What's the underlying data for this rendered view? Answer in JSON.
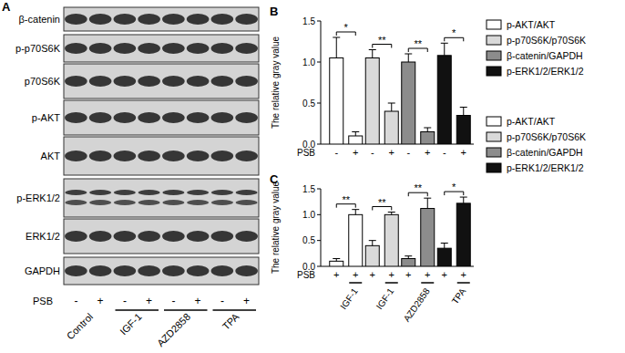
{
  "chart_data": [
    {
      "type": "blot",
      "title": "A",
      "rows": [
        "β-catenin",
        "p-p70S6K",
        "p70S6K",
        "p-AKT",
        "AKT",
        "p-ERK1/2",
        "ERK1/2",
        "GAPDH"
      ],
      "lane_label": "PSB",
      "lanes": [
        "-",
        "+",
        "-",
        "+",
        "-",
        "+",
        "-",
        "+"
      ],
      "groups": [
        "Control",
        "IGF-1",
        "AZD2858",
        "TPA"
      ]
    },
    {
      "type": "bar",
      "title": "B",
      "y_label": "The relative gray value",
      "x_label": "PSB",
      "categories": [
        "-",
        "+"
      ],
      "ylim": [
        0,
        1.5
      ],
      "yticks": [
        {
          "value": 0,
          "label": "0.0"
        },
        {
          "value": 0.5,
          "label": "0.5"
        },
        {
          "value": 1,
          "label": "1.0"
        },
        {
          "value": 1.5,
          "label": "1.5"
        }
      ],
      "series": [
        {
          "name": "p-AKT/AKT",
          "color": "#ffffff",
          "values": [
            1.05,
            0.1
          ],
          "errors": [
            0.25,
            0.05
          ]
        },
        {
          "name": "p-p70S6K/p70S6K",
          "color": "#d9d9d9",
          "values": [
            1.05,
            0.4
          ],
          "errors": [
            0.1,
            0.1
          ]
        },
        {
          "name": "β-catenin/GAPDH",
          "color": "#8c8c8c",
          "values": [
            1.0,
            0.15
          ],
          "errors": [
            0.1,
            0.05
          ]
        },
        {
          "name": "p-ERK1/2/ERK1/2",
          "color": "#111111",
          "values": [
            1.08,
            0.35
          ],
          "errors": [
            0.15,
            0.1
          ]
        }
      ],
      "significance": [
        "*",
        "**",
        "**",
        "*"
      ],
      "legend": "right"
    },
    {
      "type": "bar",
      "title": "C",
      "y_label": "The relative gray value",
      "x_label": "PSB",
      "categories": [
        "+",
        "+"
      ],
      "treatments": [
        "IGF-1",
        "IGF-1",
        "AZD2858",
        "TPA"
      ],
      "ylim": [
        0,
        1.5
      ],
      "yticks": [
        {
          "value": 0,
          "label": "0.0"
        },
        {
          "value": 0.5,
          "label": "0.5"
        },
        {
          "value": 1,
          "label": "1.0"
        },
        {
          "value": 1.5,
          "label": "1.5"
        }
      ],
      "series": [
        {
          "name": "p-AKT/AKT",
          "color": "#ffffff",
          "values": [
            0.1,
            1.0
          ],
          "errors": [
            0.05,
            0.1
          ]
        },
        {
          "name": "p-p70S6K/p70S6K",
          "color": "#d9d9d9",
          "values": [
            0.4,
            1.0
          ],
          "errors": [
            0.1,
            0.05
          ]
        },
        {
          "name": "β-catenin/GAPDH",
          "color": "#8c8c8c",
          "values": [
            0.15,
            1.12
          ],
          "errors": [
            0.05,
            0.2
          ]
        },
        {
          "name": "p-ERK1/2/ERK1/2",
          "color": "#111111",
          "values": [
            0.35,
            1.22
          ],
          "errors": [
            0.1,
            0.12
          ]
        }
      ],
      "significance": [
        "**",
        "**",
        "**",
        "*"
      ],
      "legend": "right"
    }
  ]
}
